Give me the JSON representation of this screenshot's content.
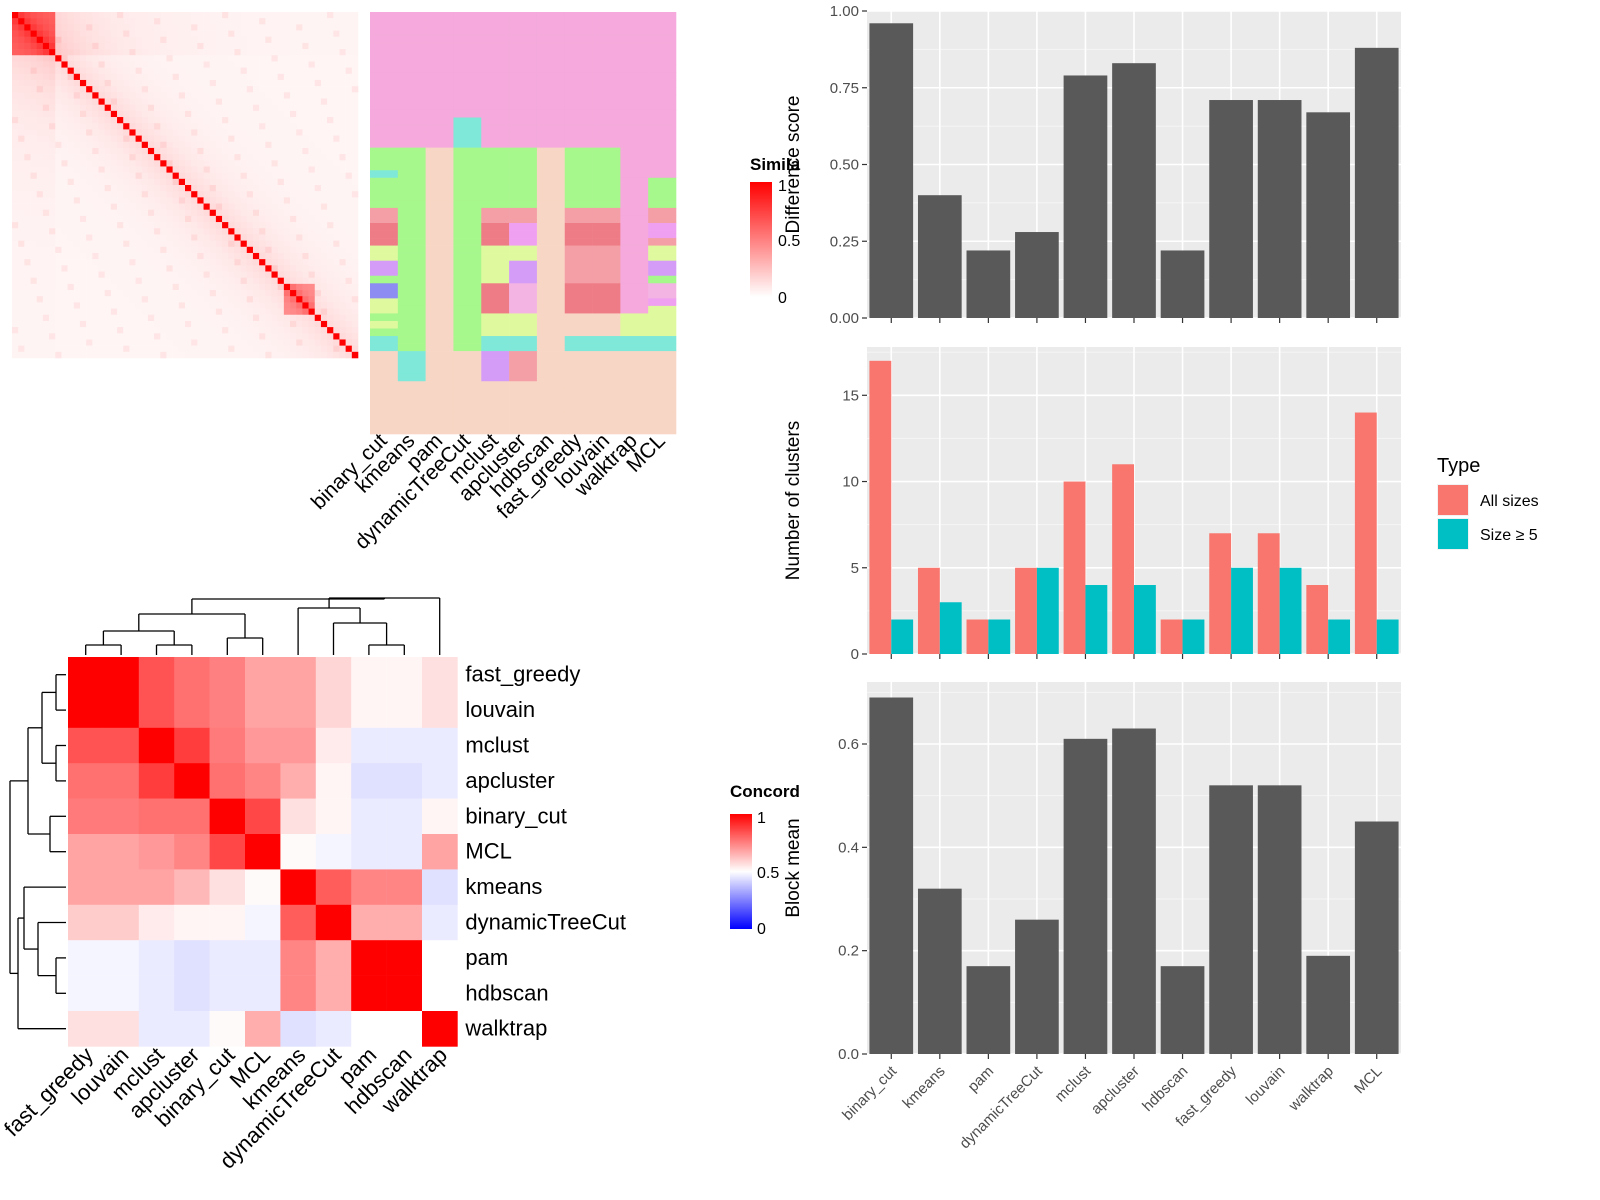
{
  "colors": {
    "panel_bg": "#EBEBEB",
    "bar_fill": "#595959",
    "all_sizes": "#F8766D",
    "size_ge_5": "#00BFC4",
    "heat_high": "#FF0000",
    "heat_mid": "#FFFFFF",
    "heat_low": "#0000FF"
  },
  "labels": {
    "methods": [
      "binary_cut",
      "kmeans",
      "pam",
      "dynamicTreeCut",
      "mclust",
      "apcluster",
      "hdbscan",
      "fast_greedy",
      "louvain",
      "walktrap",
      "MCL"
    ],
    "similarity_legend_title": "Simila",
    "concordance_legend_title": "Concord",
    "legend_ticks": [
      "1",
      "0.5",
      "0"
    ]
  },
  "chart_data": [
    {
      "type": "heatmap",
      "name": "similarity-heatmap",
      "legend": "Similarity",
      "n": 56,
      "diagonal": 1,
      "scale": [
        0,
        1
      ]
    },
    {
      "type": "heatmap",
      "name": "cluster-membership-grid",
      "columns": [
        "binary_cut",
        "kmeans",
        "pam",
        "dynamicTreeCut",
        "mclust",
        "apcluster",
        "hdbscan",
        "fast_greedy",
        "louvain",
        "walktrap",
        "MCL"
      ],
      "palette": [
        "#F5A9DC",
        "#A6F78C",
        "#F8D6C5",
        "#F49EA6",
        "#EE7C86",
        "#DFFA9E",
        "#D49CF6",
        "#7FE8D8",
        "#F0A0F0",
        "#8C8CF2",
        "#F3B4E4"
      ],
      "rows": [
        [
          0,
          0,
          0,
          0,
          0,
          0,
          0,
          0,
          0,
          0,
          0
        ],
        [
          0,
          0,
          0,
          0,
          0,
          0,
          0,
          0,
          0,
          0,
          0
        ],
        [
          0,
          0,
          0,
          0,
          0,
          0,
          0,
          0,
          0,
          0,
          0
        ],
        [
          0,
          0,
          0,
          0,
          0,
          0,
          0,
          0,
          0,
          0,
          0
        ],
        [
          0,
          0,
          0,
          0,
          0,
          0,
          0,
          0,
          0,
          0,
          0
        ],
        [
          0,
          0,
          0,
          0,
          0,
          0,
          0,
          0,
          0,
          0,
          0
        ],
        [
          0,
          0,
          0,
          0,
          0,
          0,
          0,
          0,
          0,
          0,
          0
        ],
        [
          0,
          0,
          0,
          0,
          0,
          0,
          0,
          0,
          0,
          0,
          0
        ],
        [
          0,
          0,
          0,
          0,
          0,
          0,
          0,
          0,
          0,
          0,
          0
        ],
        [
          0,
          0,
          0,
          0,
          0,
          0,
          0,
          0,
          0,
          0,
          0
        ],
        [
          0,
          0,
          0,
          0,
          0,
          0,
          0,
          0,
          0,
          0,
          0
        ],
        [
          0,
          0,
          0,
          0,
          0,
          0,
          0,
          0,
          0,
          0,
          0
        ],
        [
          0,
          0,
          0,
          0,
          0,
          0,
          0,
          0,
          0,
          0,
          0
        ],
        [
          0,
          0,
          0,
          0,
          0,
          0,
          0,
          0,
          0,
          0,
          0
        ],
        [
          0,
          0,
          0,
          7,
          0,
          0,
          0,
          0,
          0,
          0,
          0
        ],
        [
          0,
          0,
          0,
          7,
          0,
          0,
          0,
          0,
          0,
          0,
          0
        ],
        [
          0,
          0,
          0,
          7,
          0,
          0,
          0,
          0,
          0,
          0,
          0
        ],
        [
          0,
          0,
          0,
          7,
          0,
          0,
          0,
          0,
          0,
          0,
          0
        ],
        [
          1,
          1,
          2,
          1,
          1,
          1,
          2,
          1,
          1,
          0,
          0
        ],
        [
          1,
          1,
          2,
          1,
          1,
          1,
          2,
          1,
          1,
          0,
          0
        ],
        [
          1,
          1,
          2,
          1,
          1,
          1,
          2,
          1,
          1,
          0,
          0
        ],
        [
          7,
          1,
          2,
          1,
          1,
          1,
          2,
          1,
          1,
          0,
          0
        ],
        [
          1,
          1,
          2,
          1,
          1,
          1,
          2,
          1,
          1,
          0,
          1
        ],
        [
          1,
          1,
          2,
          1,
          1,
          1,
          2,
          1,
          1,
          0,
          1
        ],
        [
          1,
          1,
          2,
          1,
          1,
          1,
          2,
          1,
          1,
          0,
          1
        ],
        [
          1,
          1,
          2,
          1,
          1,
          1,
          2,
          1,
          1,
          0,
          1
        ],
        [
          3,
          1,
          2,
          1,
          3,
          3,
          2,
          3,
          3,
          0,
          3
        ],
        [
          3,
          1,
          2,
          1,
          3,
          3,
          2,
          3,
          3,
          0,
          3
        ],
        [
          4,
          1,
          2,
          1,
          4,
          8,
          2,
          4,
          4,
          0,
          8
        ],
        [
          4,
          1,
          2,
          1,
          4,
          8,
          2,
          4,
          4,
          0,
          8
        ],
        [
          4,
          1,
          2,
          1,
          4,
          8,
          2,
          4,
          4,
          0,
          3
        ],
        [
          5,
          1,
          2,
          1,
          5,
          5,
          2,
          3,
          3,
          0,
          5
        ],
        [
          5,
          1,
          2,
          1,
          5,
          5,
          2,
          3,
          3,
          0,
          5
        ],
        [
          6,
          1,
          2,
          1,
          5,
          6,
          2,
          3,
          3,
          0,
          6
        ],
        [
          6,
          1,
          2,
          1,
          5,
          6,
          2,
          3,
          3,
          0,
          6
        ],
        [
          1,
          1,
          2,
          1,
          5,
          6,
          2,
          3,
          3,
          0,
          1
        ],
        [
          9,
          1,
          2,
          1,
          4,
          10,
          2,
          4,
          4,
          0,
          10
        ],
        [
          9,
          1,
          2,
          1,
          4,
          10,
          2,
          4,
          4,
          0,
          10
        ],
        [
          5,
          1,
          2,
          1,
          4,
          10,
          2,
          4,
          4,
          0,
          8
        ],
        [
          5,
          1,
          2,
          1,
          4,
          10,
          2,
          4,
          4,
          0,
          5
        ],
        [
          1,
          1,
          2,
          1,
          5,
          5,
          2,
          2,
          2,
          5,
          5
        ],
        [
          5,
          1,
          2,
          1,
          5,
          5,
          2,
          2,
          2,
          5,
          5
        ],
        [
          1,
          1,
          2,
          1,
          5,
          5,
          2,
          2,
          2,
          5,
          5
        ],
        [
          7,
          1,
          2,
          1,
          7,
          7,
          2,
          7,
          7,
          7,
          7
        ],
        [
          7,
          1,
          2,
          1,
          7,
          7,
          2,
          7,
          7,
          7,
          7
        ],
        [
          2,
          7,
          2,
          2,
          6,
          3,
          2,
          2,
          2,
          2,
          2
        ],
        [
          2,
          7,
          2,
          2,
          6,
          3,
          2,
          2,
          2,
          2,
          2
        ],
        [
          2,
          7,
          2,
          2,
          6,
          3,
          2,
          2,
          2,
          2,
          2
        ],
        [
          2,
          7,
          2,
          2,
          6,
          3,
          2,
          2,
          2,
          2,
          2
        ],
        [
          2,
          2,
          2,
          2,
          2,
          2,
          2,
          2,
          2,
          2,
          2
        ],
        [
          2,
          2,
          2,
          2,
          2,
          2,
          2,
          2,
          2,
          2,
          2
        ],
        [
          2,
          2,
          2,
          2,
          2,
          2,
          2,
          2,
          2,
          2,
          2
        ],
        [
          2,
          2,
          2,
          2,
          2,
          2,
          2,
          2,
          2,
          2,
          2
        ],
        [
          2,
          2,
          2,
          2,
          2,
          2,
          2,
          2,
          2,
          2,
          2
        ],
        [
          2,
          2,
          2,
          2,
          2,
          2,
          2,
          2,
          2,
          2,
          2
        ],
        [
          2,
          2,
          2,
          2,
          2,
          2,
          2,
          2,
          2,
          2,
          2
        ]
      ]
    },
    {
      "type": "heatmap",
      "name": "concordance-heatmap",
      "legend": "Concordance",
      "row_labels": [
        "fast_greedy",
        "louvain",
        "mclust",
        "apcluster",
        "binary_cut",
        "MCL",
        "kmeans",
        "dynamicTreeCut",
        "pam",
        "hdbscan",
        "walktrap"
      ],
      "col_labels": [
        "fast_greedy",
        "louvain",
        "mclust",
        "apcluster",
        "binary_cut",
        "MCL",
        "kmeans",
        "dynamicTreeCut",
        "pam",
        "hdbscan",
        "walktrap"
      ],
      "scale": [
        0,
        1
      ],
      "values": [
        [
          1.0,
          1.0,
          0.84,
          0.78,
          0.75,
          0.68,
          0.68,
          0.58,
          0.52,
          0.52,
          0.56
        ],
        [
          1.0,
          1.0,
          0.84,
          0.78,
          0.75,
          0.68,
          0.68,
          0.58,
          0.52,
          0.52,
          0.56
        ],
        [
          0.84,
          0.84,
          1.0,
          0.88,
          0.76,
          0.7,
          0.7,
          0.54,
          0.46,
          0.46,
          0.46
        ],
        [
          0.78,
          0.78,
          0.88,
          1.0,
          0.78,
          0.74,
          0.66,
          0.52,
          0.44,
          0.44,
          0.46
        ],
        [
          0.76,
          0.76,
          0.78,
          0.78,
          1.0,
          0.86,
          0.56,
          0.52,
          0.46,
          0.46,
          0.52
        ],
        [
          0.68,
          0.68,
          0.7,
          0.74,
          0.86,
          1.0,
          0.51,
          0.48,
          0.46,
          0.46,
          0.68
        ],
        [
          0.68,
          0.68,
          0.68,
          0.64,
          0.56,
          0.51,
          1.0,
          0.82,
          0.74,
          0.74,
          0.44
        ],
        [
          0.6,
          0.6,
          0.54,
          0.52,
          0.52,
          0.48,
          0.82,
          1.0,
          0.66,
          0.66,
          0.46
        ],
        [
          0.48,
          0.48,
          0.46,
          0.44,
          0.46,
          0.46,
          0.74,
          0.66,
          1.0,
          1.0,
          0.5
        ],
        [
          0.48,
          0.48,
          0.46,
          0.44,
          0.46,
          0.46,
          0.74,
          0.66,
          1.0,
          1.0,
          0.5
        ],
        [
          0.56,
          0.56,
          0.46,
          0.46,
          0.51,
          0.66,
          0.44,
          0.46,
          0.5,
          0.5,
          1.0
        ]
      ],
      "dendrogram": "hierarchical clustering on rows and columns"
    },
    {
      "type": "bar",
      "name": "difference-score",
      "categories": [
        "binary_cut",
        "kmeans",
        "pam",
        "dynamicTreeCut",
        "mclust",
        "apcluster",
        "hdbscan",
        "fast_greedy",
        "louvain",
        "walktrap",
        "MCL"
      ],
      "values": [
        0.96,
        0.4,
        0.22,
        0.28,
        0.79,
        0.83,
        0.22,
        0.71,
        0.71,
        0.67,
        0.88
      ],
      "ylabel": "Difference score",
      "ylim": [
        0,
        1.0
      ],
      "yticks": [
        "0.00",
        "0.25",
        "0.50",
        "0.75",
        "1.00"
      ],
      "grid": true
    },
    {
      "type": "bar",
      "name": "number-of-clusters",
      "categories": [
        "binary_cut",
        "kmeans",
        "pam",
        "dynamicTreeCut",
        "mclust",
        "apcluster",
        "hdbscan",
        "fast_greedy",
        "louvain",
        "walktrap",
        "MCL"
      ],
      "series": [
        {
          "name": "All sizes",
          "values": [
            17,
            5,
            2,
            5,
            10,
            11,
            2,
            7,
            7,
            4,
            14
          ]
        },
        {
          "name": "Size ≥ 5",
          "values": [
            2,
            3,
            2,
            5,
            4,
            4,
            2,
            5,
            5,
            2,
            2
          ]
        }
      ],
      "ylabel": "Number of clusters",
      "ylim": [
        0,
        17.8
      ],
      "yticks": [
        "0",
        "5",
        "10",
        "15"
      ],
      "legend_title": "Type",
      "legend_position": "right",
      "grid": true
    },
    {
      "type": "bar",
      "name": "block-mean",
      "categories": [
        "binary_cut",
        "kmeans",
        "pam",
        "dynamicTreeCut",
        "mclust",
        "apcluster",
        "hdbscan",
        "fast_greedy",
        "louvain",
        "walktrap",
        "MCL"
      ],
      "values": [
        0.69,
        0.32,
        0.17,
        0.26,
        0.61,
        0.63,
        0.17,
        0.52,
        0.52,
        0.19,
        0.45
      ],
      "ylabel": "Block mean",
      "ylim": [
        0,
        0.72
      ],
      "yticks": [
        "0.0",
        "0.2",
        "0.4",
        "0.6"
      ],
      "grid": true
    }
  ]
}
